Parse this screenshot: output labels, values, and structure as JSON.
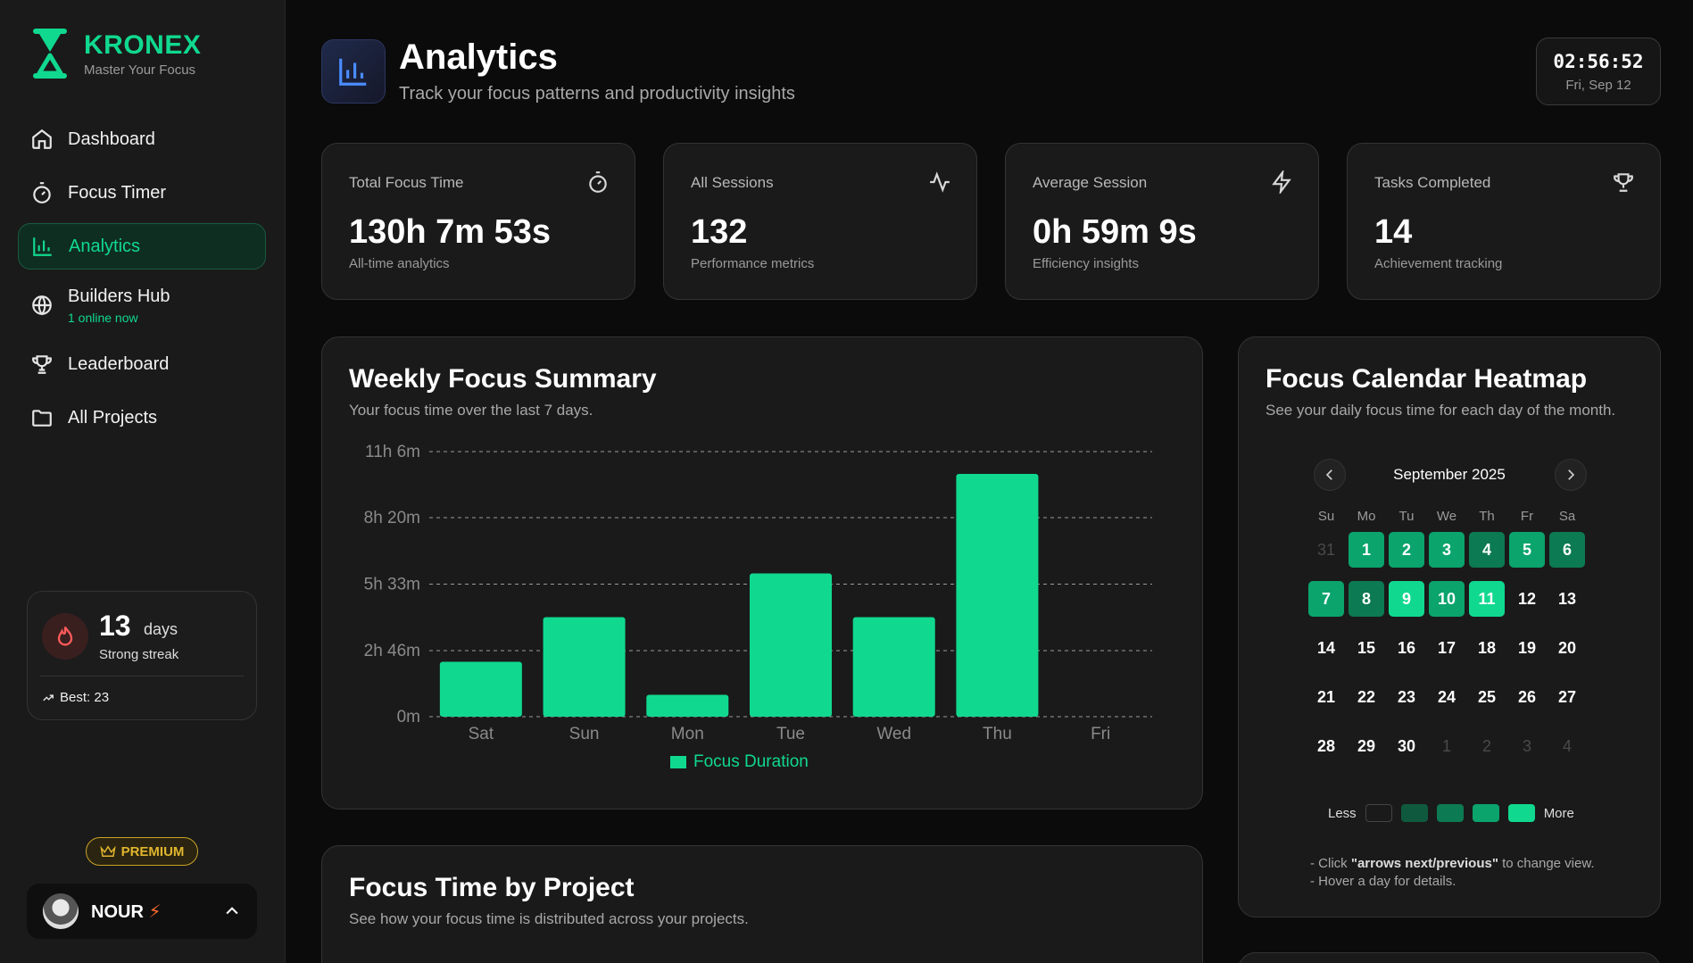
{
  "brand": {
    "name": "KRONEX",
    "tagline": "Master Your Focus"
  },
  "nav": [
    {
      "label": "Dashboard",
      "icon": "home-icon",
      "active": false
    },
    {
      "label": "Focus Timer",
      "icon": "timer-icon",
      "active": false
    },
    {
      "label": "Analytics",
      "icon": "bar-chart-icon",
      "active": true
    },
    {
      "label": "Builders Hub",
      "icon": "globe-icon",
      "active": false,
      "sub": "1 online now"
    },
    {
      "label": "Leaderboard",
      "icon": "trophy-icon",
      "active": false
    },
    {
      "label": "All Projects",
      "icon": "folder-icon",
      "active": false
    }
  ],
  "streak": {
    "count": "13",
    "unit": "days",
    "label": "Strong streak",
    "best": "Best: 23"
  },
  "premium": {
    "label": "PREMIUM"
  },
  "user": {
    "name": "NOUR"
  },
  "header": {
    "title": "Analytics",
    "subtitle": "Track your focus patterns and productivity insights"
  },
  "clock": {
    "time": "02:56:52",
    "date": "Fri, Sep 12"
  },
  "stats": [
    {
      "label": "Total Focus Time",
      "value": "130h 7m 53s",
      "caption": "All-time analytics",
      "icon": "stopwatch-icon"
    },
    {
      "label": "All Sessions",
      "value": "132",
      "caption": "Performance metrics",
      "icon": "activity-icon"
    },
    {
      "label": "Average Session",
      "value": "0h 59m 9s",
      "caption": "Efficiency insights",
      "icon": "lightning-icon"
    },
    {
      "label": "Tasks Completed",
      "value": "14",
      "caption": "Achievement tracking",
      "icon": "trophy-icon"
    }
  ],
  "weekly": {
    "title": "Weekly Focus Summary",
    "subtitle": "Your focus time over the last 7 days."
  },
  "chart_data": {
    "type": "bar",
    "categories": [
      "Sat",
      "Sun",
      "Mon",
      "Tue",
      "Wed",
      "Thu",
      "Fri"
    ],
    "series": [
      {
        "name": "Focus Duration",
        "values": [
          138,
          250,
          55,
          360,
          250,
          610,
          0
        ]
      }
    ],
    "value_unit": "minutes",
    "yticks": [
      "0m",
      "2h 46m",
      "5h 33m",
      "8h 20m",
      "11h 6m"
    ],
    "ytick_values": [
      0,
      166,
      333,
      500,
      666
    ],
    "ylim": [
      0,
      666
    ],
    "grid": true,
    "legend_position": "bottom",
    "color": "#10d98f"
  },
  "heatmap": {
    "title": "Focus Calendar Heatmap",
    "subtitle": "See your daily focus time for each day of the month.",
    "month": "September 2025",
    "weekdays": [
      "Su",
      "Mo",
      "Tu",
      "We",
      "Th",
      "Fr",
      "Sa"
    ],
    "days": [
      {
        "d": "31",
        "lvl": -1
      },
      {
        "d": "1",
        "lvl": 3
      },
      {
        "d": "2",
        "lvl": 3
      },
      {
        "d": "3",
        "lvl": 3
      },
      {
        "d": "4",
        "lvl": 2
      },
      {
        "d": "5",
        "lvl": 3
      },
      {
        "d": "6",
        "lvl": 2
      },
      {
        "d": "7",
        "lvl": 3
      },
      {
        "d": "8",
        "lvl": 2
      },
      {
        "d": "9",
        "lvl": 4
      },
      {
        "d": "10",
        "lvl": 3
      },
      {
        "d": "11",
        "lvl": 4
      },
      {
        "d": "12",
        "lvl": 0
      },
      {
        "d": "13",
        "lvl": 0
      },
      {
        "d": "14",
        "lvl": 0
      },
      {
        "d": "15",
        "lvl": 0
      },
      {
        "d": "16",
        "lvl": 0
      },
      {
        "d": "17",
        "lvl": 0
      },
      {
        "d": "18",
        "lvl": 0
      },
      {
        "d": "19",
        "lvl": 0
      },
      {
        "d": "20",
        "lvl": 0
      },
      {
        "d": "21",
        "lvl": 0
      },
      {
        "d": "22",
        "lvl": 0
      },
      {
        "d": "23",
        "lvl": 0
      },
      {
        "d": "24",
        "lvl": 0
      },
      {
        "d": "25",
        "lvl": 0
      },
      {
        "d": "26",
        "lvl": 0
      },
      {
        "d": "27",
        "lvl": 0
      },
      {
        "d": "28",
        "lvl": 0
      },
      {
        "d": "29",
        "lvl": 0
      },
      {
        "d": "30",
        "lvl": 0
      },
      {
        "d": "1",
        "lvl": -1
      },
      {
        "d": "2",
        "lvl": -1
      },
      {
        "d": "3",
        "lvl": -1
      },
      {
        "d": "4",
        "lvl": -1
      }
    ],
    "legend_less": "Less",
    "legend_more": "More",
    "help_1_pre": "- Click ",
    "help_1_bold": "\"arrows next/previous\"",
    "help_1_post": " to change view.",
    "help_2": "- Hover a day for details."
  },
  "projects": {
    "title": "Focus Time by Project",
    "subtitle": "See how your focus time is distributed across your projects."
  }
}
